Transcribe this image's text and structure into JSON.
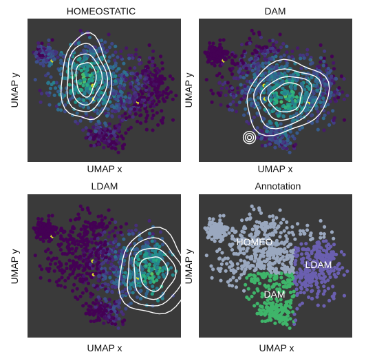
{
  "chart_data": [
    {
      "type": "scatter",
      "title": "HOMEOSTATIC",
      "xlabel": "UMAP x",
      "ylabel": "UMAP y",
      "background": "#3a3a3a",
      "colormap": "viridis",
      "density_contours": {
        "color": "#ffffff",
        "center": [
          0.38,
          0.42
        ],
        "levels": 4
      }
    },
    {
      "type": "scatter",
      "title": "DAM",
      "xlabel": "UMAP x",
      "ylabel": "UMAP y",
      "background": "#3a3a3a",
      "colormap": "viridis",
      "density_contours": {
        "color": "#ffffff",
        "center": [
          0.57,
          0.55
        ],
        "levels": 4,
        "secondary_peak": [
          0.33,
          0.83
        ]
      }
    },
    {
      "type": "scatter",
      "title": "LDAM",
      "xlabel": "UMAP x",
      "ylabel": "UMAP y",
      "background": "#3a3a3a",
      "colormap": "viridis",
      "density_contours": {
        "color": "#ffffff",
        "center": [
          0.82,
          0.55
        ],
        "levels": 4
      }
    },
    {
      "type": "scatter",
      "title": "Annotation",
      "xlabel": "UMAP x",
      "ylabel": "UMAP y",
      "background": "#3a3a3a",
      "series": [
        {
          "name": "HOMEO",
          "color": "#9aa8bf"
        },
        {
          "name": "DAM",
          "color": "#3fb56a"
        },
        {
          "name": "LDAM",
          "color": "#6a5fb0"
        }
      ],
      "cluster_labels": [
        "HOMEO",
        "DAM",
        "LDAM"
      ]
    }
  ]
}
